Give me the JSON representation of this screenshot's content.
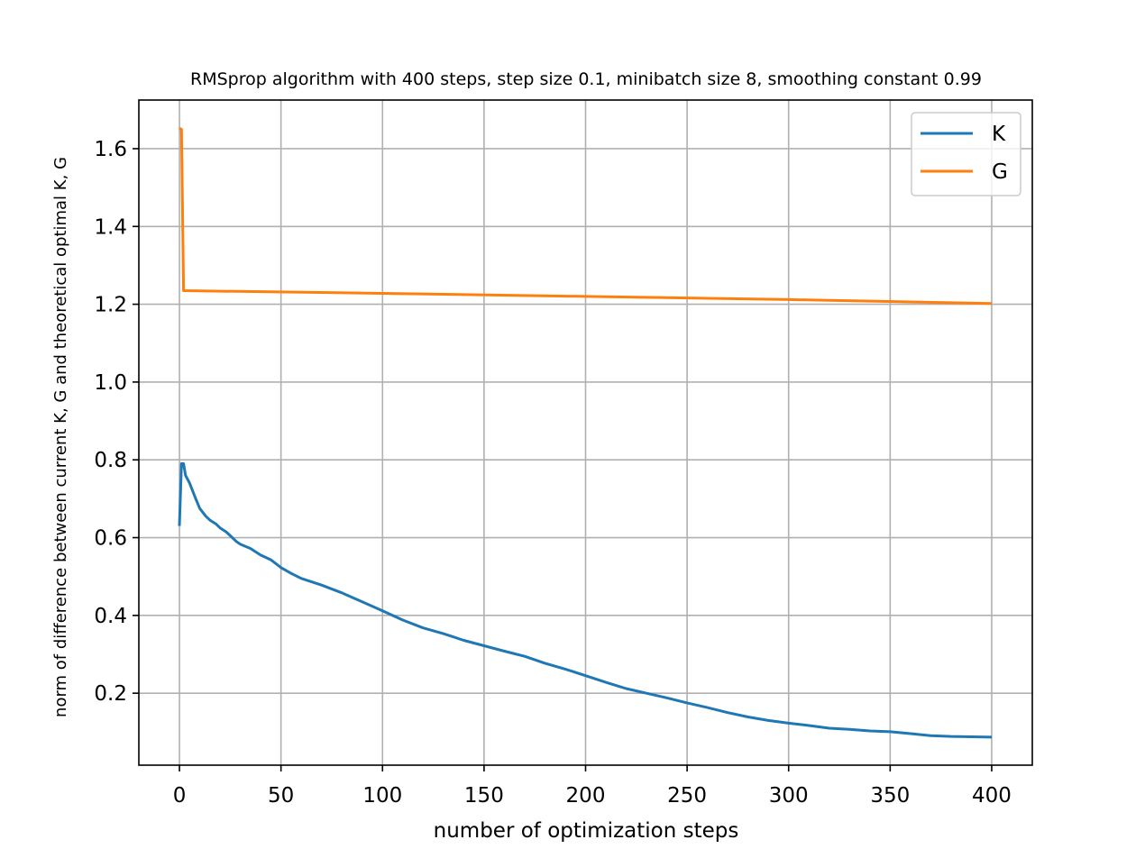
{
  "chart_data": {
    "type": "line",
    "title": "RMSprop algorithm with 400 steps, step size 0.1, minibatch size 8, smoothing constant 0.99",
    "xlabel": "number of optimization steps",
    "ylabel": "norm of difference between current K, G and theoretical optimal K, G",
    "xlim": [
      -20,
      420
    ],
    "ylim": [
      0.015,
      1.725
    ],
    "xticks": [
      0,
      50,
      100,
      150,
      200,
      250,
      300,
      350,
      400
    ],
    "xtick_labels": [
      "0",
      "50",
      "100",
      "150",
      "200",
      "250",
      "300",
      "350",
      "400"
    ],
    "yticks": [
      0.2,
      0.4,
      0.6,
      0.8,
      1.0,
      1.2,
      1.4,
      1.6
    ],
    "ytick_labels": [
      "0.2",
      "0.4",
      "0.6",
      "0.8",
      "1.0",
      "1.2",
      "1.4",
      "1.6"
    ],
    "grid": true,
    "legend_position": "top-right",
    "series": [
      {
        "name": "K",
        "color": "#1f77b4",
        "points": [
          [
            0,
            0.63
          ],
          [
            1,
            0.79
          ],
          [
            2,
            0.79
          ],
          [
            3,
            0.76
          ],
          [
            5,
            0.74
          ],
          [
            8,
            0.7
          ],
          [
            10,
            0.675
          ],
          [
            13,
            0.655
          ],
          [
            15,
            0.645
          ],
          [
            18,
            0.635
          ],
          [
            20,
            0.625
          ],
          [
            23,
            0.615
          ],
          [
            25,
            0.605
          ],
          [
            28,
            0.59
          ],
          [
            30,
            0.583
          ],
          [
            35,
            0.572
          ],
          [
            40,
            0.555
          ],
          [
            45,
            0.543
          ],
          [
            50,
            0.523
          ],
          [
            55,
            0.508
          ],
          [
            60,
            0.495
          ],
          [
            70,
            0.478
          ],
          [
            80,
            0.458
          ],
          [
            90,
            0.435
          ],
          [
            100,
            0.412
          ],
          [
            110,
            0.388
          ],
          [
            120,
            0.368
          ],
          [
            130,
            0.353
          ],
          [
            140,
            0.336
          ],
          [
            150,
            0.322
          ],
          [
            160,
            0.308
          ],
          [
            170,
            0.295
          ],
          [
            180,
            0.277
          ],
          [
            190,
            0.262
          ],
          [
            200,
            0.245
          ],
          [
            210,
            0.228
          ],
          [
            220,
            0.212
          ],
          [
            230,
            0.2
          ],
          [
            240,
            0.188
          ],
          [
            250,
            0.175
          ],
          [
            260,
            0.163
          ],
          [
            270,
            0.15
          ],
          [
            280,
            0.139
          ],
          [
            290,
            0.13
          ],
          [
            300,
            0.123
          ],
          [
            310,
            0.117
          ],
          [
            320,
            0.11
          ],
          [
            330,
            0.107
          ],
          [
            340,
            0.103
          ],
          [
            350,
            0.101
          ],
          [
            360,
            0.096
          ],
          [
            370,
            0.091
          ],
          [
            380,
            0.089
          ],
          [
            390,
            0.088
          ],
          [
            400,
            0.087
          ]
        ]
      },
      {
        "name": "G",
        "color": "#ff7f0e",
        "points": [
          [
            0,
            1.652
          ],
          [
            1,
            1.65
          ],
          [
            2,
            1.235
          ],
          [
            100,
            1.228
          ],
          [
            200,
            1.22
          ],
          [
            300,
            1.212
          ],
          [
            400,
            1.202
          ]
        ]
      }
    ]
  }
}
